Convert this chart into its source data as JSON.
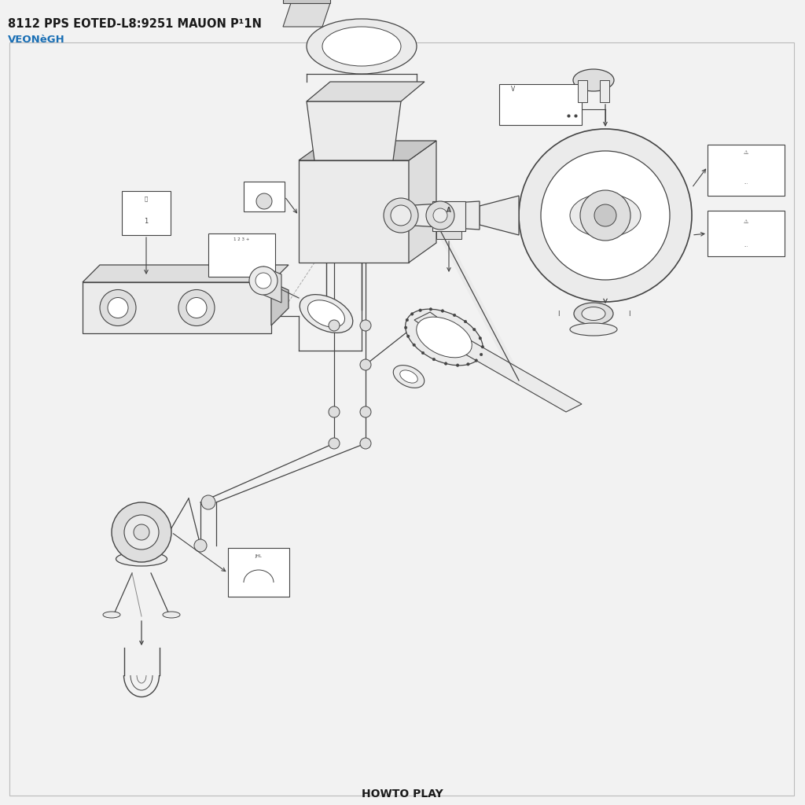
{
  "title_line1": "8112 PPS EOTED-L8:9251 MAUON P¹1N",
  "title_line2": "VEONèGH",
  "bottom_text": "HOWTO PLAY",
  "title_color": "#1a1a1a",
  "subtitle_color": "#1a6fb5",
  "bg_color": "#f2f2f2",
  "diagram_bg": "#f8f8f8",
  "border_color": "#bbbbbb",
  "line_color": "#444444",
  "light_fill": "#ebebeb",
  "mid_fill": "#dedede",
  "dark_fill": "#c8c8c8"
}
